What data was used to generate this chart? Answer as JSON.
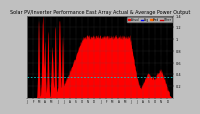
{
  "title": "Solar PV/Inverter Performance East Array Actual & Average Power Output",
  "title_fontsize": 3.5,
  "background_color": "#c0c0c0",
  "plot_bg_color": "#000000",
  "grid_color": "#555555",
  "bar_color": "#ff0000",
  "avg_line_color": "#00cccc",
  "avg_value": 0.35,
  "ylim": [
    0,
    1.4
  ],
  "yticks": [
    0.2,
    0.4,
    0.6,
    0.8,
    1.0,
    1.2,
    1.4
  ],
  "ytick_labels": [
    "0.2",
    "0.4",
    "0.6",
    "0.8",
    "1",
    "1.2",
    "1.4"
  ],
  "num_points": 700,
  "legend_items": [
    {
      "label": "Actual",
      "color": "#ff0000",
      "type": "patch"
    },
    {
      "label": "Avg",
      "color": "#0000ff",
      "type": "line"
    },
    {
      "label": "Predicted",
      "color": "#ff6600",
      "type": "patch"
    },
    {
      "label": "Other",
      "color": "#008800",
      "type": "patch"
    }
  ]
}
